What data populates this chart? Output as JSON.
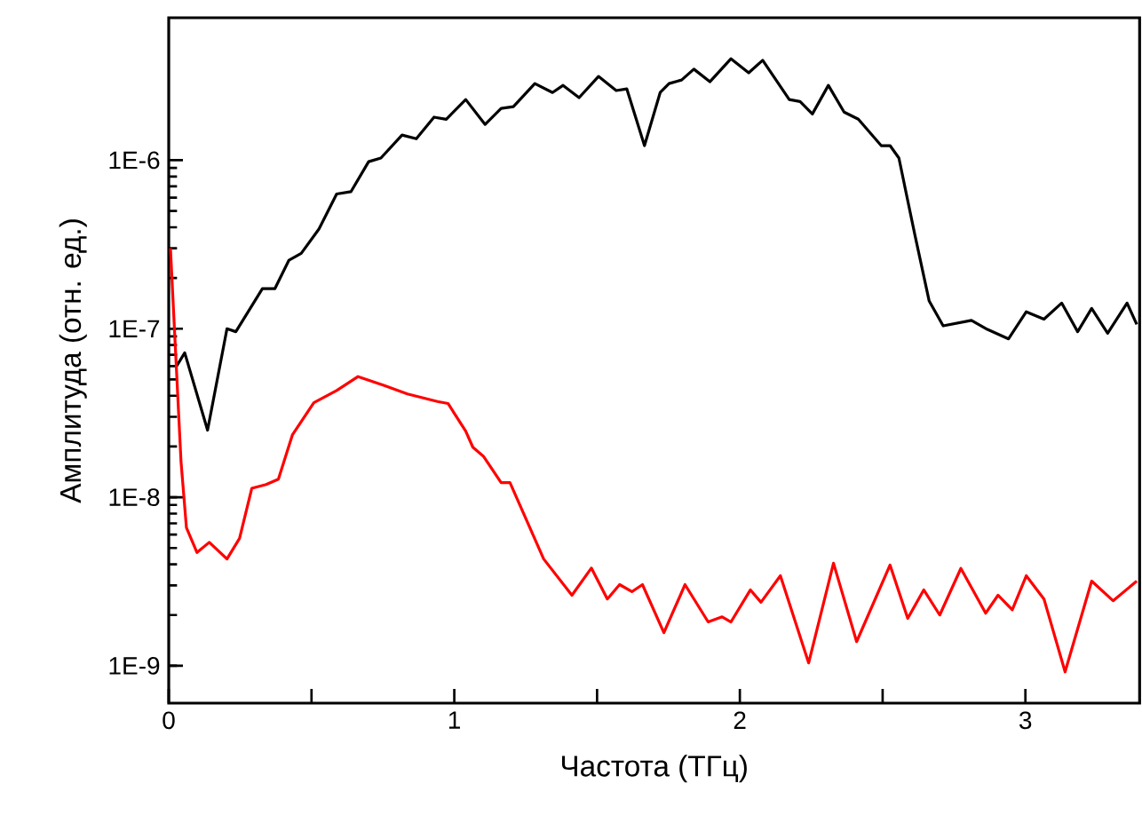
{
  "chart_data": {
    "type": "line",
    "xlabel": "Частота (ТГц)",
    "ylabel": "Амплитуда (отн. ед.)",
    "log": "y",
    "xlim": [
      0,
      3.4
    ],
    "ylim": [
      6e-10,
      7e-06
    ],
    "xticks": [
      0,
      {
        "value": 0.5,
        "label": null
      },
      1,
      {
        "value": 1.5,
        "label": null
      },
      2,
      {
        "value": 2.5,
        "label": null
      },
      3
    ],
    "yticks": [
      {
        "value": 1e-09,
        "label": "1E-9"
      },
      {
        "value": 1e-08,
        "label": "1E-8"
      },
      {
        "value": 1e-07,
        "label": "1E-7"
      },
      {
        "value": 1e-06,
        "label": "1E-6"
      }
    ],
    "series": [
      {
        "color": "#000000",
        "x": [
          0.025,
          0.056,
          0.136,
          0.204,
          0.235,
          0.328,
          0.372,
          0.421,
          0.464,
          0.526,
          0.588,
          0.638,
          0.7,
          0.743,
          0.817,
          0.867,
          0.929,
          0.972,
          1.04,
          1.108,
          1.164,
          1.207,
          1.282,
          1.344,
          1.381,
          1.437,
          1.505,
          1.567,
          1.604,
          1.666,
          1.721,
          1.752,
          1.796,
          1.839,
          1.895,
          1.969,
          2.031,
          2.08,
          2.173,
          2.211,
          2.254,
          2.31,
          2.365,
          2.415,
          2.495,
          2.526,
          2.557,
          2.613,
          2.663,
          2.712,
          2.811,
          2.867,
          2.941,
          3.003,
          3.065,
          3.127,
          3.183,
          3.232,
          3.288,
          3.356,
          3.39
        ],
        "values": [
          5.9e-08,
          7.2e-08,
          2.5e-08,
          1e-07,
          9.6e-08,
          1.73e-07,
          1.73e-07,
          2.55e-07,
          2.8e-07,
          3.9e-07,
          6.3e-07,
          6.5e-07,
          9.8e-07,
          1.03e-06,
          1.41e-06,
          1.34e-06,
          1.8e-06,
          1.75e-06,
          2.29e-06,
          1.63e-06,
          2.03e-06,
          2.08e-06,
          2.85e-06,
          2.52e-06,
          2.78e-06,
          2.35e-06,
          3.14e-06,
          2.59e-06,
          2.65e-06,
          1.22e-06,
          2.52e-06,
          2.85e-06,
          2.99e-06,
          3.47e-06,
          2.92e-06,
          4e-06,
          3.3e-06,
          3.92e-06,
          2.29e-06,
          2.23e-06,
          1.88e-06,
          2.78e-06,
          1.93e-06,
          1.75e-06,
          1.22e-06,
          1.22e-06,
          1.03e-06,
          3.6e-07,
          1.46e-07,
          1.04e-07,
          1.12e-07,
          9.9e-08,
          8.7e-08,
          1.26e-07,
          1.14e-07,
          1.42e-07,
          9.6e-08,
          1.32e-07,
          9.4e-08,
          1.42e-07,
          1.06e-07
        ]
      },
      {
        "color": "#ff0000",
        "x": [
          0.006,
          0.043,
          0.062,
          0.099,
          0.142,
          0.204,
          0.248,
          0.291,
          0.341,
          0.384,
          0.433,
          0.508,
          0.588,
          0.663,
          0.755,
          0.836,
          0.941,
          0.978,
          1.04,
          1.065,
          1.102,
          1.164,
          1.195,
          1.313,
          1.412,
          1.48,
          1.536,
          1.579,
          1.622,
          1.659,
          1.734,
          1.808,
          1.889,
          1.938,
          1.969,
          2.037,
          2.074,
          2.142,
          2.241,
          2.328,
          2.409,
          2.526,
          2.588,
          2.644,
          2.7,
          2.774,
          2.861,
          2.904,
          2.954,
          3.003,
          3.065,
          3.139,
          3.232,
          3.307,
          3.39
        ],
        "values": [
          3e-07,
          1.63e-08,
          6.6e-09,
          4.7e-09,
          5.4e-09,
          4.3e-09,
          5.7e-09,
          1.13e-08,
          1.19e-08,
          1.28e-08,
          2.34e-08,
          3.64e-08,
          4.3e-08,
          5.2e-08,
          4.6e-08,
          4.1e-08,
          3.7e-08,
          3.6e-08,
          2.47e-08,
          1.98e-08,
          1.75e-08,
          1.22e-08,
          1.22e-08,
          4.3e-09,
          2.62e-09,
          3.8e-09,
          2.49e-09,
          3.03e-09,
          2.75e-09,
          3.03e-09,
          1.57e-09,
          3.03e-09,
          1.82e-09,
          1.95e-09,
          1.82e-09,
          2.82e-09,
          2.38e-09,
          3.42e-09,
          1.04e-09,
          4.06e-09,
          1.39e-09,
          3.96e-09,
          1.91e-09,
          2.82e-09,
          2e-09,
          3.78e-09,
          2.05e-09,
          2.62e-09,
          2.15e-09,
          3.42e-09,
          2.49e-09,
          9.2e-10,
          3.18e-09,
          2.43e-09,
          3.18e-09
        ]
      }
    ]
  }
}
